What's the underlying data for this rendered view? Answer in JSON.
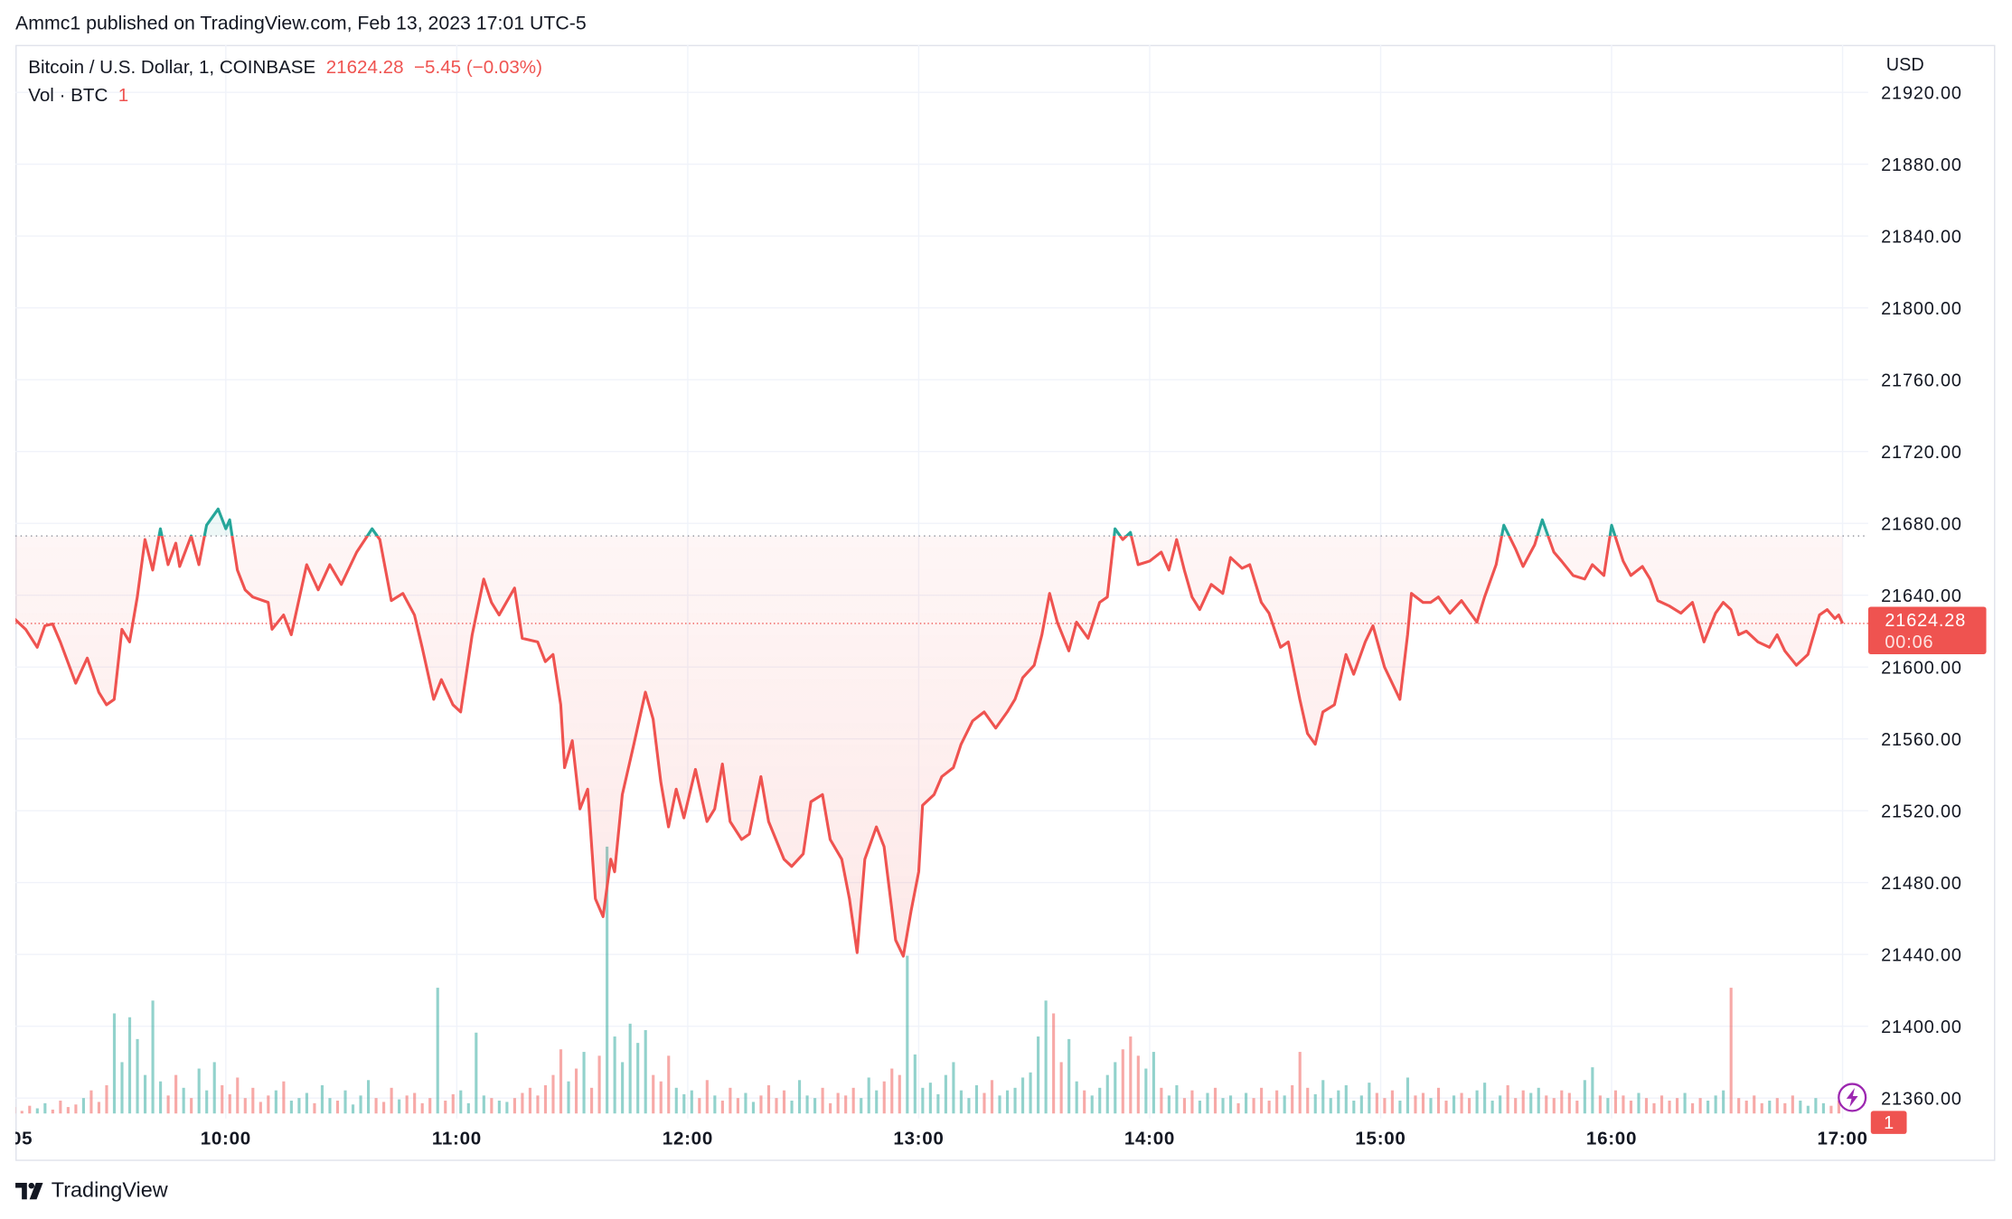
{
  "header": {
    "published": "Ammc1 published on TradingView.com, Feb 13, 2023 17:01 UTC-5"
  },
  "legend": {
    "symbol": "Bitcoin / U.S. Dollar, 1, COINBASE",
    "last": "21624.28",
    "change": "−5.45 (−0.03%)",
    "vol_label": "Vol · BTC",
    "vol_value": "1"
  },
  "price_axis": {
    "currency": "USD"
  },
  "badges": {
    "price": "21624.28",
    "countdown": "00:06",
    "volume": "1"
  },
  "footer": {
    "brand": "TradingView"
  },
  "colors": {
    "up": "#26a69a",
    "down": "#ef5350",
    "text": "#131722",
    "grid": "#f0f3fa",
    "bolt": "#9c27b0"
  },
  "chart_data": {
    "type": "line",
    "style": "baseline",
    "title": "Bitcoin / U.S. Dollar, 1, COINBASE",
    "x_unit": "minutes after 09:00",
    "baseline": 21673,
    "last_price": 21624.28,
    "ylim": [
      21340,
      21940
    ],
    "yticks": [
      "21920.00",
      "21880.00",
      "21840.00",
      "21800.00",
      "21760.00",
      "21720.00",
      "21680.00",
      "21640.00",
      "21600.00",
      "21560.00",
      "21520.00",
      "21480.00",
      "21440.00",
      "21400.00",
      "21360.00"
    ],
    "xticks": [
      {
        "minute": 5,
        "label": "05"
      },
      {
        "minute": 60,
        "label": "10:00"
      },
      {
        "minute": 120,
        "label": "11:00"
      },
      {
        "minute": 180,
        "label": "12:00"
      },
      {
        "minute": 240,
        "label": "13:00"
      },
      {
        "minute": 300,
        "label": "14:00"
      },
      {
        "minute": 360,
        "label": "15:00"
      },
      {
        "minute": 420,
        "label": "16:00"
      },
      {
        "minute": 480,
        "label": "17:00"
      }
    ],
    "price": {
      "x": [
        5,
        8,
        11,
        13,
        15,
        17,
        21,
        24,
        27,
        29,
        31,
        33,
        35,
        37,
        39,
        41,
        43,
        45,
        47,
        48,
        51,
        53,
        55,
        58,
        60,
        61,
        63,
        65,
        67,
        71,
        72,
        75,
        77,
        81,
        84,
        87,
        90,
        94,
        98,
        100,
        103,
        106,
        109,
        111,
        114,
        116,
        119,
        121,
        124,
        127,
        129,
        131,
        135,
        137,
        141,
        143,
        145,
        147,
        148,
        150,
        152,
        154,
        156,
        158,
        160,
        161,
        163,
        166,
        169,
        171,
        173,
        175,
        177,
        179,
        182,
        185,
        187,
        189,
        191,
        194,
        196,
        199,
        201,
        205,
        207,
        210,
        212,
        215,
        217,
        220,
        222,
        224,
        226,
        229,
        231,
        234,
        236,
        238,
        240,
        241,
        244,
        246,
        249,
        251,
        254,
        257,
        260,
        263,
        265,
        267,
        270,
        272,
        274,
        276,
        279,
        281,
        284,
        287,
        289,
        291,
        293,
        295,
        297,
        300,
        303,
        305,
        307,
        309,
        311,
        313,
        316,
        319,
        321,
        324,
        326,
        329,
        331,
        334,
        336,
        339,
        341,
        343,
        345,
        348,
        351,
        353,
        356,
        358,
        361,
        365,
        367,
        368,
        371,
        373,
        375,
        378,
        381,
        385,
        387,
        390,
        392,
        395,
        397,
        400,
        402,
        405,
        407,
        410,
        413,
        415,
        418,
        420,
        423,
        425,
        428,
        430,
        432,
        435,
        438,
        441,
        444,
        447,
        449,
        451,
        453,
        455,
        458,
        461,
        463,
        465,
        468,
        471,
        474,
        476,
        478,
        479,
        480
      ],
      "y": [
        21627,
        21621,
        21611,
        21623,
        21624,
        21614,
        21591,
        21605,
        21586,
        21579,
        21582,
        21621,
        21614,
        21639,
        21671,
        21654,
        21677,
        21657,
        21669,
        21656,
        21673,
        21657,
        21679,
        21688,
        21677,
        21682,
        21654,
        21643,
        21639,
        21636,
        21621,
        21629,
        21618,
        21657,
        21643,
        21657,
        21646,
        21664,
        21677,
        21671,
        21637,
        21641,
        21629,
        21611,
        21582,
        21593,
        21579,
        21575,
        21618,
        21649,
        21636,
        21629,
        21644,
        21616,
        21614,
        21603,
        21607,
        21579,
        21544,
        21559,
        21521,
        21532,
        21471,
        21461,
        21493,
        21486,
        21529,
        21557,
        21586,
        21571,
        21536,
        21511,
        21532,
        21516,
        21543,
        21514,
        21521,
        21546,
        21514,
        21504,
        21507,
        21539,
        21514,
        21493,
        21489,
        21496,
        21525,
        21529,
        21504,
        21493,
        21471,
        21441,
        21493,
        21511,
        21500,
        21448,
        21439,
        21464,
        21486,
        21523,
        21529,
        21539,
        21544,
        21557,
        21570,
        21575,
        21566,
        21575,
        21582,
        21594,
        21601,
        21618,
        21641,
        21625,
        21609,
        21625,
        21616,
        21636,
        21639,
        21677,
        21671,
        21675,
        21657,
        21659,
        21664,
        21654,
        21671,
        21654,
        21639,
        21632,
        21646,
        21641,
        21661,
        21655,
        21657,
        21636,
        21630,
        21611,
        21614,
        21582,
        21563,
        21557,
        21575,
        21579,
        21607,
        21596,
        21614,
        21623,
        21600,
        21582,
        21618,
        21641,
        21636,
        21636,
        21639,
        21630,
        21637,
        21625,
        21639,
        21657,
        21679,
        21666,
        21656,
        21668,
        21682,
        21664,
        21659,
        21651,
        21649,
        21657,
        21651,
        21679,
        21659,
        21651,
        21656,
        21649,
        21637,
        21634,
        21630,
        21636,
        21614,
        21630,
        21636,
        21632,
        21618,
        21620,
        21614,
        21611,
        21618,
        21609,
        21601,
        21607,
        21629,
        21632,
        21627,
        21629,
        21624.28
      ]
    },
    "volume": {
      "x_start_minute": 1,
      "x_step_minutes": 2,
      "values": [
        4,
        3,
        5,
        2,
        6,
        4,
        8,
        3,
        10,
        5,
        7,
        12,
        18,
        9,
        22,
        78,
        40,
        75,
        58,
        30,
        88,
        25,
        14,
        30,
        20,
        12,
        35,
        18,
        40,
        22,
        15,
        28,
        12,
        20,
        9,
        14,
        18,
        25,
        10,
        12,
        16,
        8,
        22,
        12,
        10,
        18,
        7,
        14,
        26,
        12,
        9,
        20,
        11,
        14,
        16,
        8,
        12,
        98,
        10,
        15,
        18,
        8,
        63,
        14,
        12,
        10,
        9,
        12,
        16,
        20,
        14,
        22,
        30,
        50,
        25,
        35,
        48,
        20,
        45,
        208,
        60,
        40,
        70,
        55,
        65,
        30,
        25,
        45,
        20,
        15,
        18,
        12,
        26,
        14,
        10,
        20,
        12,
        16,
        9,
        14,
        22,
        12,
        18,
        10,
        26,
        14,
        12,
        20,
        8,
        16,
        14,
        20,
        12,
        28,
        18,
        25,
        35,
        30,
        123,
        46,
        20,
        24,
        15,
        30,
        40,
        18,
        12,
        22,
        16,
        26,
        14,
        18,
        20,
        28,
        32,
        60,
        88,
        78,
        40,
        58,
        25,
        18,
        14,
        20,
        30,
        40,
        50,
        60,
        45,
        35,
        48,
        20,
        14,
        22,
        12,
        18,
        10,
        16,
        20,
        12,
        14,
        8,
        16,
        12,
        20,
        10,
        18,
        14,
        22,
        48,
        20,
        15,
        26,
        12,
        18,
        22,
        10,
        14,
        24,
        16,
        12,
        18,
        10,
        28,
        14,
        16,
        12,
        20,
        10,
        14,
        16,
        12,
        18,
        24,
        10,
        14,
        22,
        12,
        18,
        16,
        20,
        14,
        12,
        18,
        16,
        10,
        26,
        36,
        14,
        12,
        18,
        14,
        10,
        16,
        12,
        8,
        14,
        10,
        12,
        16,
        8,
        12,
        10,
        14,
        18,
        98,
        12,
        10,
        14,
        8,
        10,
        12,
        8,
        14,
        10,
        6,
        12,
        8,
        6,
        10
      ]
    }
  }
}
